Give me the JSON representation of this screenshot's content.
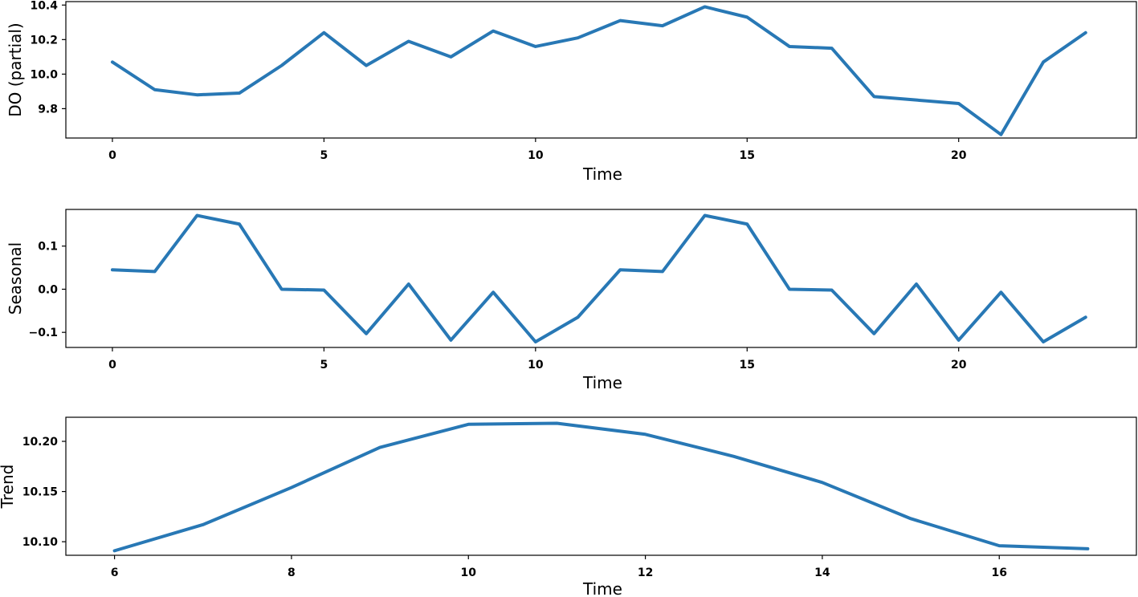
{
  "chart_data": [
    {
      "type": "line",
      "xlabel": "Time",
      "ylabel": "DO (partial)",
      "xlim": [
        -1.1,
        24.2
      ],
      "ylim": [
        9.63,
        10.42
      ],
      "xticks": [
        0,
        5,
        10,
        15,
        20
      ],
      "xtick_labels": [
        "0",
        "5",
        "10",
        "15",
        "20"
      ],
      "yticks": [
        9.8,
        10.0,
        10.2,
        10.4
      ],
      "ytick_labels": [
        "9.8",
        "10.0",
        "10.2",
        "10.4"
      ],
      "grid": false,
      "color": "#2878b5",
      "series": [
        {
          "x": [
            0,
            1,
            2,
            3,
            4,
            5,
            6,
            7,
            8,
            9,
            10,
            11,
            12,
            13,
            14,
            15,
            16,
            17,
            18,
            19,
            20,
            21,
            22,
            23
          ],
          "values": [
            10.07,
            9.91,
            9.88,
            9.89,
            10.05,
            10.24,
            10.05,
            10.19,
            10.1,
            10.25,
            10.16,
            10.21,
            10.31,
            10.28,
            10.39,
            10.33,
            10.16,
            10.15,
            9.87,
            9.85,
            9.83,
            9.65,
            10.07,
            10.24
          ]
        }
      ]
    },
    {
      "type": "line",
      "xlabel": "Time",
      "ylabel": "Seasonal",
      "xlim": [
        -1.1,
        24.2
      ],
      "ylim": [
        -0.135,
        0.185
      ],
      "xticks": [
        0,
        5,
        10,
        15,
        20
      ],
      "xtick_labels": [
        "0",
        "5",
        "10",
        "15",
        "20"
      ],
      "yticks": [
        -0.1,
        0.0,
        0.1
      ],
      "ytick_labels": [
        "−0.1",
        "0.0",
        "0.1"
      ],
      "grid": false,
      "color": "#2878b5",
      "series": [
        {
          "x": [
            0,
            1,
            2,
            3,
            4,
            5,
            6,
            7,
            8,
            9,
            10,
            11,
            12,
            13,
            14,
            15,
            16,
            17,
            18,
            19,
            20,
            21,
            22,
            23
          ],
          "values": [
            0.045,
            0.041,
            0.171,
            0.151,
            0.0,
            -0.002,
            -0.103,
            0.012,
            -0.118,
            -0.007,
            -0.122,
            -0.065,
            0.045,
            0.041,
            0.171,
            0.151,
            0.0,
            -0.002,
            -0.103,
            0.012,
            -0.118,
            -0.007,
            -0.122,
            -0.065
          ]
        }
      ]
    },
    {
      "type": "line",
      "xlabel": "Time",
      "ylabel": "Trend",
      "xlim": [
        5.45,
        17.55
      ],
      "ylim": [
        10.0865,
        10.224
      ],
      "xticks": [
        6,
        8,
        10,
        12,
        14,
        16
      ],
      "xtick_labels": [
        "6",
        "8",
        "10",
        "12",
        "14",
        "16"
      ],
      "yticks": [
        10.1,
        10.15,
        10.2
      ],
      "ytick_labels": [
        "10.10",
        "10.15",
        "10.20"
      ],
      "grid": false,
      "color": "#2878b5",
      "series": [
        {
          "x": [
            6,
            7,
            8,
            9,
            10,
            11,
            12,
            13,
            14,
            15,
            16,
            17
          ],
          "values": [
            10.091,
            10.117,
            10.154,
            10.194,
            10.217,
            10.218,
            10.207,
            10.185,
            10.159,
            10.123,
            10.096,
            10.093
          ]
        }
      ]
    }
  ]
}
